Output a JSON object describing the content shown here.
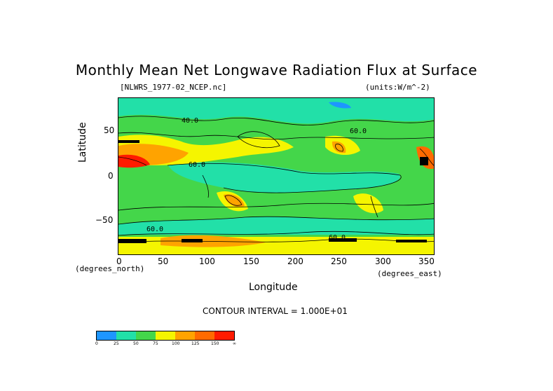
{
  "title": "Monthly Mean Net Longwave Radiation Flux at Surface",
  "file_label": "[NLWRS_1977-02_NCEP.nc]",
  "units_label": "(units:W/m^-2)",
  "y_axis": {
    "label": "Latitude",
    "unit_note": "(degrees_north)",
    "ticks": [
      "50",
      "0",
      "−50"
    ]
  },
  "x_axis": {
    "label": "Longitude",
    "unit_note": "(degrees_east)",
    "ticks": [
      "0",
      "50",
      "100",
      "150",
      "200",
      "250",
      "300",
      "350"
    ]
  },
  "contour_interval": "CONTOUR INTERVAL = 1.000E+01",
  "map_labels": [
    "40.0",
    "60.0",
    "60.0",
    "60.0",
    "60.0"
  ],
  "colorbar": {
    "colors": [
      "#1e96ff",
      "#22e0a8",
      "#44d64a",
      "#f5f500",
      "#ffa300",
      "#ff6a00",
      "#ff1a00"
    ],
    "labels": [
      "0",
      "25",
      "50",
      "75",
      "100",
      "125",
      "150",
      "∞"
    ]
  },
  "palette": {
    "teal": "#22e0a8",
    "green": "#44d64a",
    "yellow": "#f5f500",
    "orange": "#ffa300",
    "dark_orange": "#ff6a00",
    "red": "#ff1a00",
    "blue": "#1e96ff",
    "black": "#000000"
  }
}
